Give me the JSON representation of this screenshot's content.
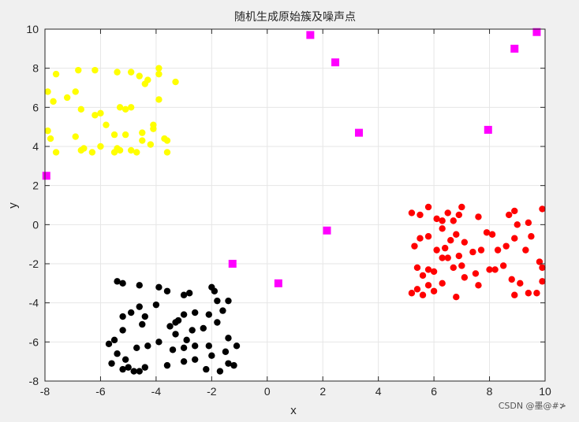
{
  "chart_data": {
    "type": "scatter",
    "title": "随机生成原始簇及噪声点",
    "xlabel": "x",
    "ylabel": "y",
    "xlim": [
      -8,
      10
    ],
    "ylim": [
      -8,
      10
    ],
    "xticks": [
      -8,
      -6,
      -4,
      -2,
      0,
      2,
      4,
      6,
      8,
      10
    ],
    "yticks": [
      -8,
      -6,
      -4,
      -2,
      0,
      2,
      4,
      6,
      8,
      10
    ],
    "grid": true,
    "colors": {
      "background": "#f0f0f0",
      "plot_area": "#ffffff",
      "grid": "#e6e6e6",
      "axis": "#262626"
    },
    "series": [
      {
        "marker": "circle",
        "color": "#ffff00",
        "points": [
          [
            -7.6,
            7.7
          ],
          [
            -7.2,
            6.5
          ],
          [
            -6.8,
            7.9
          ],
          [
            -6.2,
            7.9
          ],
          [
            -5.4,
            7.8
          ],
          [
            -4.9,
            7.8
          ],
          [
            -4.6,
            7.6
          ],
          [
            -4.3,
            7.4
          ],
          [
            -3.9,
            8.0
          ],
          [
            -3.9,
            7.7
          ],
          [
            -3.3,
            7.3
          ],
          [
            -7.9,
            6.8
          ],
          [
            -7.7,
            6.3
          ],
          [
            -6.9,
            6.8
          ],
          [
            -6.7,
            5.9
          ],
          [
            -6.2,
            5.6
          ],
          [
            -6.0,
            5.7
          ],
          [
            -5.3,
            6.0
          ],
          [
            -5.1,
            5.9
          ],
          [
            -4.9,
            6.0
          ],
          [
            -3.9,
            6.4
          ],
          [
            -4.4,
            7.2
          ],
          [
            -7.9,
            4.8
          ],
          [
            -7.8,
            4.4
          ],
          [
            -7.6,
            3.7
          ],
          [
            -6.9,
            4.5
          ],
          [
            -6.7,
            3.8
          ],
          [
            -6.6,
            3.9
          ],
          [
            -6.3,
            3.7
          ],
          [
            -6.0,
            4.0
          ],
          [
            -5.8,
            5.1
          ],
          [
            -5.5,
            4.6
          ],
          [
            -5.5,
            3.7
          ],
          [
            -5.4,
            3.9
          ],
          [
            -5.3,
            3.8
          ],
          [
            -5.1,
            4.6
          ],
          [
            -4.9,
            3.8
          ],
          [
            -4.7,
            3.7
          ],
          [
            -4.5,
            4.3
          ],
          [
            -4.5,
            4.7
          ],
          [
            -4.2,
            4.1
          ],
          [
            -4.1,
            5.1
          ],
          [
            -4.1,
            4.9
          ],
          [
            -3.6,
            3.7
          ],
          [
            -3.6,
            4.3
          ],
          [
            -3.7,
            4.4
          ]
        ]
      },
      {
        "marker": "circle",
        "color": "#ff0000",
        "points": [
          [
            5.2,
            0.6
          ],
          [
            5.5,
            0.5
          ],
          [
            5.8,
            0.9
          ],
          [
            6.1,
            0.3
          ],
          [
            6.3,
            0.2
          ],
          [
            6.5,
            0.6
          ],
          [
            6.7,
            0.2
          ],
          [
            6.9,
            0.5
          ],
          [
            7.0,
            0.9
          ],
          [
            7.6,
            0.4
          ],
          [
            8.7,
            0.5
          ],
          [
            8.9,
            0.7
          ],
          [
            9.0,
            0.0
          ],
          [
            9.4,
            0.1
          ],
          [
            9.9,
            0.8
          ],
          [
            5.3,
            -1.1
          ],
          [
            5.5,
            -0.7
          ],
          [
            5.8,
            -0.6
          ],
          [
            6.1,
            -1.3
          ],
          [
            6.3,
            -0.2
          ],
          [
            6.6,
            -0.8
          ],
          [
            6.8,
            -0.5
          ],
          [
            7.1,
            -0.9
          ],
          [
            7.4,
            -1.4
          ],
          [
            7.7,
            -1.3
          ],
          [
            7.9,
            -0.4
          ],
          [
            8.1,
            -0.5
          ],
          [
            8.3,
            -1.3
          ],
          [
            8.6,
            -1.1
          ],
          [
            8.9,
            -0.7
          ],
          [
            9.3,
            -1.3
          ],
          [
            9.5,
            -0.6
          ],
          [
            9.8,
            -1.9
          ],
          [
            5.4,
            -2.2
          ],
          [
            5.6,
            -2.6
          ],
          [
            5.8,
            -2.3
          ],
          [
            6.0,
            -2.4
          ],
          [
            6.3,
            -1.7
          ],
          [
            6.5,
            -1.7
          ],
          [
            6.7,
            -2.2
          ],
          [
            7.0,
            -2.1
          ],
          [
            7.1,
            -2.7
          ],
          [
            7.5,
            -2.5
          ],
          [
            8.0,
            -2.3
          ],
          [
            8.2,
            -2.3
          ],
          [
            8.5,
            -2.1
          ],
          [
            8.8,
            -2.8
          ],
          [
            9.1,
            -3.0
          ],
          [
            9.4,
            -3.5
          ],
          [
            9.7,
            -3.5
          ],
          [
            9.9,
            -2.9
          ],
          [
            5.2,
            -3.5
          ],
          [
            5.4,
            -3.3
          ],
          [
            5.6,
            -3.6
          ],
          [
            5.8,
            -3.1
          ],
          [
            6.0,
            -3.4
          ],
          [
            6.3,
            -3.0
          ],
          [
            6.8,
            -3.7
          ],
          [
            7.6,
            -3.1
          ],
          [
            8.9,
            -3.6
          ],
          [
            9.9,
            -2.2
          ],
          [
            6.4,
            -1.2
          ],
          [
            6.9,
            -1.6
          ]
        ]
      },
      {
        "marker": "circle",
        "color": "#000000",
        "points": [
          [
            -5.4,
            -2.9
          ],
          [
            -5.2,
            -3.0
          ],
          [
            -4.6,
            -3.1
          ],
          [
            -3.9,
            -3.2
          ],
          [
            -3.6,
            -3.4
          ],
          [
            -3.0,
            -3.6
          ],
          [
            -2.8,
            -3.5
          ],
          [
            -2.0,
            -3.2
          ],
          [
            -1.9,
            -3.4
          ],
          [
            -1.8,
            -3.9
          ],
          [
            -1.4,
            -3.9
          ],
          [
            -5.2,
            -4.7
          ],
          [
            -4.9,
            -4.5
          ],
          [
            -4.6,
            -4.2
          ],
          [
            -4.4,
            -4.7
          ],
          [
            -4.0,
            -4.1
          ],
          [
            -3.2,
            -4.9
          ],
          [
            -3.0,
            -4.6
          ],
          [
            -2.6,
            -4.5
          ],
          [
            -2.1,
            -4.6
          ],
          [
            -1.6,
            -4.4
          ],
          [
            -5.5,
            -5.9
          ],
          [
            -5.2,
            -5.4
          ],
          [
            -4.5,
            -5.1
          ],
          [
            -3.5,
            -5.2
          ],
          [
            -3.3,
            -5.6
          ],
          [
            -2.9,
            -5.9
          ],
          [
            -2.7,
            -5.4
          ],
          [
            -2.3,
            -5.3
          ],
          [
            -1.8,
            -5.0
          ],
          [
            -1.4,
            -5.8
          ],
          [
            -5.7,
            -6.1
          ],
          [
            -5.4,
            -6.6
          ],
          [
            -5.1,
            -6.9
          ],
          [
            -4.7,
            -6.3
          ],
          [
            -4.3,
            -6.2
          ],
          [
            -3.9,
            -6.0
          ],
          [
            -3.4,
            -6.4
          ],
          [
            -3.0,
            -6.3
          ],
          [
            -2.6,
            -6.2
          ],
          [
            -2.1,
            -6.2
          ],
          [
            -1.5,
            -6.5
          ],
          [
            -1.1,
            -6.2
          ],
          [
            -5.6,
            -7.1
          ],
          [
            -5.2,
            -7.4
          ],
          [
            -4.8,
            -7.5
          ],
          [
            -4.4,
            -7.3
          ],
          [
            -3.6,
            -7.2
          ],
          [
            -3.0,
            -7.0
          ],
          [
            -2.6,
            -6.9
          ],
          [
            -2.2,
            -7.4
          ],
          [
            -1.7,
            -7.5
          ],
          [
            -1.4,
            -7.1
          ],
          [
            -1.2,
            -7.2
          ],
          [
            -5.0,
            -7.3
          ],
          [
            -4.6,
            -7.5
          ],
          [
            -3.3,
            -5.0
          ],
          [
            -2.0,
            -6.7
          ]
        ]
      },
      {
        "marker": "square",
        "color": "#ff00ff",
        "points": [
          [
            -7.95,
            2.5
          ],
          [
            -1.25,
            -2.0
          ],
          [
            0.4,
            -3.0
          ],
          [
            1.55,
            9.7
          ],
          [
            2.15,
            -0.3
          ],
          [
            2.45,
            8.3
          ],
          [
            3.3,
            4.7
          ],
          [
            7.95,
            4.85
          ],
          [
            8.9,
            9.0
          ],
          [
            9.7,
            9.85
          ]
        ]
      }
    ]
  },
  "watermark": "CSDN @墨@#≯"
}
